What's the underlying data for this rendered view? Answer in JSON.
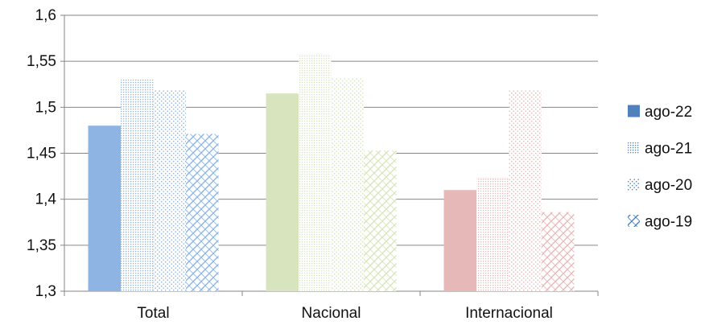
{
  "chart_data": {
    "type": "bar",
    "categories": [
      "Total",
      "Nacional",
      "Internacional"
    ],
    "series": [
      {
        "name": "ago-22",
        "values": [
          1.48,
          1.515,
          1.41
        ]
      },
      {
        "name": "ago-21",
        "values": [
          1.531,
          1.558,
          1.424
        ]
      },
      {
        "name": "ago-20",
        "values": [
          1.519,
          1.532,
          1.519
        ]
      },
      {
        "name": "ago-19",
        "values": [
          1.471,
          1.453,
          1.386
        ]
      }
    ],
    "yticks": [
      "1,3",
      "1,35",
      "1,4",
      "1,45",
      "1,5",
      "1,55",
      "1,6"
    ],
    "ylim": [
      1.3,
      1.6
    ],
    "grid": true,
    "legend_position": "right",
    "category_colors": [
      "#8eb4e3",
      "#d7e4bd",
      "#e6b9b8"
    ],
    "legend_color": "#4f81bd",
    "title": "",
    "xlabel": "",
    "ylabel": ""
  }
}
